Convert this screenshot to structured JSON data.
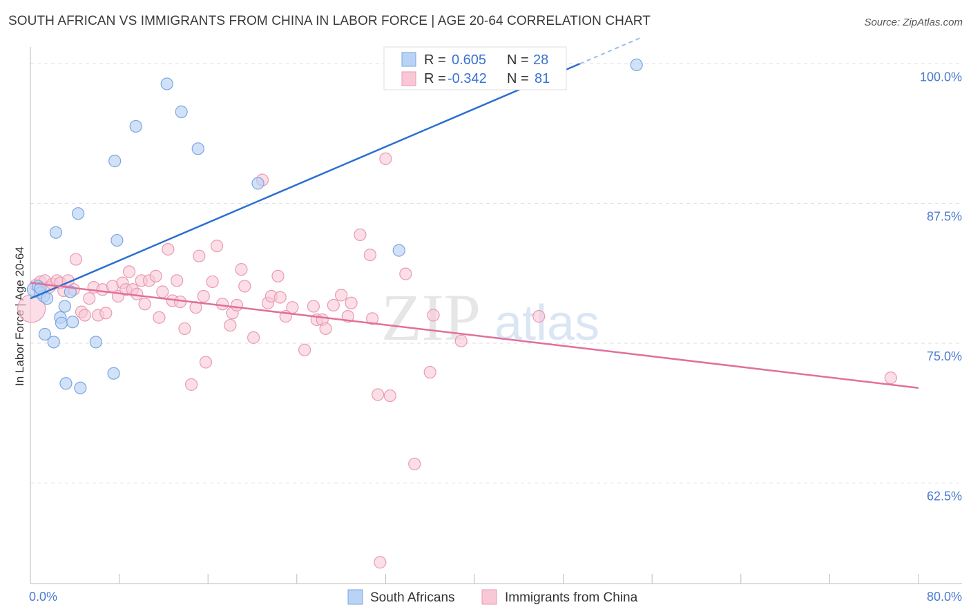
{
  "header": {
    "title": "SOUTH AFRICAN VS IMMIGRANTS FROM CHINA IN LABOR FORCE | AGE 20-64 CORRELATION CHART",
    "source": "Source: ZipAtlas.com"
  },
  "watermark": {
    "zip": "ZIP",
    "atlas": "atlas"
  },
  "colors": {
    "blue_fill": "#b8d3f5",
    "blue_stroke": "#7aa6e0",
    "blue_line": "#2a6fd0",
    "pink_fill": "#f9c8d6",
    "pink_stroke": "#e99ab3",
    "pink_line": "#e0709a",
    "grid": "#dddddd",
    "tick": "#4a7bd0"
  },
  "legend": {
    "rows": [
      {
        "r_label": "R =",
        "r_value": "0.605",
        "n_label": "N =",
        "n_value": "28"
      },
      {
        "r_label": "R =",
        "r_value": "-0.342",
        "n_label": "N =",
        "n_value": "81"
      }
    ]
  },
  "bottom_legend": {
    "series1": "South Africans",
    "series2": "Immigrants from China"
  },
  "chart_data": {
    "type": "scatter",
    "title": "SOUTH AFRICAN VS IMMIGRANTS FROM CHINA IN LABOR FORCE | AGE 20-64 CORRELATION CHART",
    "xlabel": "",
    "ylabel": "In Labor Force | Age 20-64",
    "xlim": [
      0,
      80
    ],
    "ylim": [
      53.5,
      101.5
    ],
    "x_tick_labels": {
      "left": "0.0%",
      "right": "80.0%"
    },
    "y_ticks": [
      {
        "value": 100.0,
        "label": "100.0%"
      },
      {
        "value": 87.5,
        "label": "87.5%"
      },
      {
        "value": 75.0,
        "label": "75.0%"
      },
      {
        "value": 62.5,
        "label": "62.5%"
      }
    ],
    "series": [
      {
        "name": "South Africans",
        "R": 0.605,
        "N": 28,
        "trend": {
          "x0": 0.0,
          "y0": 79.0,
          "x1": 49.5,
          "y1": 100.0,
          "dashed_to_x": 55.0
        },
        "points": [
          [
            0.4,
            79.8
          ],
          [
            0.7,
            80.1
          ],
          [
            0.9,
            79.5
          ],
          [
            1.2,
            79.2
          ],
          [
            1.5,
            79.0
          ],
          [
            2.3,
            84.9
          ],
          [
            2.7,
            77.3
          ],
          [
            2.8,
            76.8
          ],
          [
            3.1,
            78.3
          ],
          [
            3.2,
            71.4
          ],
          [
            3.6,
            79.6
          ],
          [
            3.8,
            76.9
          ],
          [
            4.3,
            86.6
          ],
          [
            4.5,
            71.0
          ],
          [
            1.3,
            75.8
          ],
          [
            2.1,
            75.1
          ],
          [
            5.9,
            75.1
          ],
          [
            7.5,
            72.3
          ],
          [
            7.6,
            91.3
          ],
          [
            7.8,
            84.2
          ],
          [
            9.5,
            94.4
          ],
          [
            12.3,
            98.2
          ],
          [
            13.6,
            95.7
          ],
          [
            15.1,
            92.4
          ],
          [
            20.5,
            89.3
          ],
          [
            33.2,
            83.3
          ],
          [
            54.6,
            99.9
          ],
          [
            0.9,
            79.9
          ]
        ]
      },
      {
        "name": "Immigrants from China",
        "R": -0.342,
        "N": 81,
        "trend": {
          "x0": 0.0,
          "y0": 80.4,
          "x1": 80.0,
          "y1": 71.0
        },
        "points": [
          [
            0.1,
            78.1
          ],
          [
            0.5,
            80.2
          ],
          [
            0.9,
            80.5
          ],
          [
            1.3,
            80.6
          ],
          [
            1.7,
            80.0
          ],
          [
            2.0,
            80.3
          ],
          [
            2.4,
            80.6
          ],
          [
            2.7,
            80.4
          ],
          [
            3.0,
            79.7
          ],
          [
            3.4,
            80.6
          ],
          [
            3.9,
            79.8
          ],
          [
            4.1,
            82.5
          ],
          [
            4.6,
            77.8
          ],
          [
            4.9,
            77.5
          ],
          [
            5.3,
            79.0
          ],
          [
            5.7,
            80.0
          ],
          [
            6.1,
            77.5
          ],
          [
            6.5,
            79.8
          ],
          [
            6.8,
            77.7
          ],
          [
            7.4,
            80.1
          ],
          [
            7.9,
            79.2
          ],
          [
            8.3,
            80.4
          ],
          [
            8.6,
            79.8
          ],
          [
            8.9,
            81.4
          ],
          [
            9.2,
            79.8
          ],
          [
            9.6,
            79.4
          ],
          [
            10.0,
            80.6
          ],
          [
            10.3,
            78.5
          ],
          [
            10.7,
            80.6
          ],
          [
            11.3,
            81.0
          ],
          [
            11.6,
            77.3
          ],
          [
            11.9,
            79.6
          ],
          [
            12.4,
            83.4
          ],
          [
            12.8,
            78.8
          ],
          [
            13.2,
            80.6
          ],
          [
            13.5,
            78.7
          ],
          [
            13.9,
            76.3
          ],
          [
            14.5,
            71.3
          ],
          [
            14.9,
            78.2
          ],
          [
            15.2,
            82.8
          ],
          [
            15.6,
            79.2
          ],
          [
            15.8,
            73.3
          ],
          [
            16.4,
            80.5
          ],
          [
            16.8,
            83.7
          ],
          [
            17.3,
            78.5
          ],
          [
            18.0,
            76.6
          ],
          [
            18.2,
            77.7
          ],
          [
            18.6,
            78.4
          ],
          [
            19.0,
            81.6
          ],
          [
            19.3,
            80.1
          ],
          [
            20.1,
            75.5
          ],
          [
            20.9,
            89.6
          ],
          [
            21.4,
            78.6
          ],
          [
            21.7,
            79.2
          ],
          [
            22.3,
            81.0
          ],
          [
            22.5,
            79.1
          ],
          [
            23.0,
            77.4
          ],
          [
            23.6,
            78.2
          ],
          [
            24.7,
            74.4
          ],
          [
            25.5,
            78.3
          ],
          [
            25.8,
            77.1
          ],
          [
            26.3,
            77.1
          ],
          [
            26.6,
            76.3
          ],
          [
            27.3,
            78.4
          ],
          [
            28.0,
            79.3
          ],
          [
            28.6,
            77.4
          ],
          [
            28.9,
            78.6
          ],
          [
            29.7,
            84.7
          ],
          [
            30.6,
            82.9
          ],
          [
            30.8,
            77.2
          ],
          [
            31.3,
            70.4
          ],
          [
            32.0,
            91.5
          ],
          [
            32.4,
            70.3
          ],
          [
            33.8,
            81.2
          ],
          [
            34.6,
            64.2
          ],
          [
            36.0,
            72.4
          ],
          [
            36.3,
            77.5
          ],
          [
            38.8,
            75.2
          ],
          [
            45.8,
            77.4
          ],
          [
            31.5,
            55.4
          ],
          [
            77.5,
            71.9
          ]
        ]
      }
    ]
  }
}
